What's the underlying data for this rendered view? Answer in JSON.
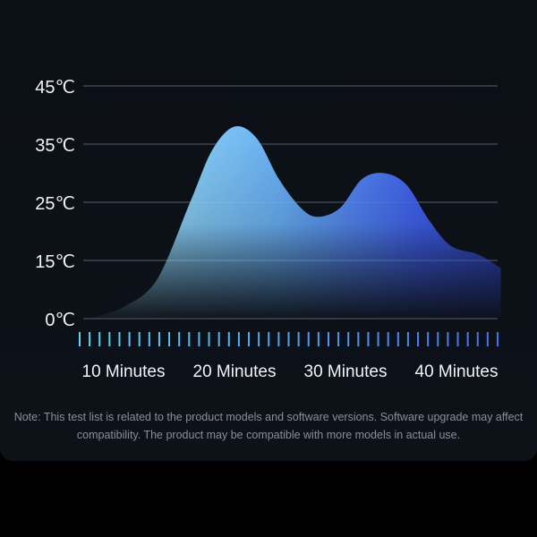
{
  "chart_data": {
    "type": "area",
    "title": "",
    "xlabel": "",
    "ylabel": "",
    "y_ticks": [
      "0℃",
      "15℃",
      "25℃",
      "35℃",
      "45℃"
    ],
    "y_tick_values": [
      0,
      15,
      25,
      35,
      45
    ],
    "x_ticks": [
      "10 Minutes",
      "20 Minutes",
      "30 Minutes",
      "40 Minutes"
    ],
    "x_tick_values": [
      10,
      20,
      30,
      40
    ],
    "grid": true,
    "series": [
      {
        "x": [
          7.5,
          10,
          13,
          16,
          18,
          20,
          22,
          24,
          26,
          27.5,
          29.5,
          31.5,
          33.5,
          35.5,
          37.5,
          39.5,
          42,
          44
        ],
        "y": [
          0.5,
          3,
          10,
          25,
          34,
          38,
          36,
          29,
          24,
          22.5,
          24,
          29,
          30,
          28,
          22,
          17.5,
          16,
          13
        ]
      }
    ],
    "minor_tick_count": 43,
    "colors": {
      "start": "#8fd3f5",
      "mid": "#5aa8f5",
      "end": "#3f5ef0",
      "ticks_start": "#5fd4f0",
      "ticks_end": "#4a6ef0"
    }
  },
  "note": {
    "line1": "Note: This test list is related to the product models and software versions. Software upgrade may affect",
    "line2": "compatibility. The product may be compatible with more models in actual use."
  }
}
